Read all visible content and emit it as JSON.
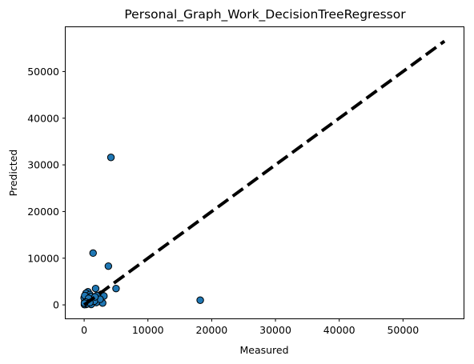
{
  "chart_data": {
    "type": "scatter",
    "title": "Personal_Graph_Work_DecisionTreeRegressor",
    "xlabel": "Measured",
    "ylabel": "Predicted",
    "xlim": [
      -2900,
      59500
    ],
    "ylim": [
      -2900,
      59500
    ],
    "xticks": [
      0,
      10000,
      20000,
      30000,
      40000,
      50000
    ],
    "yticks": [
      0,
      10000,
      20000,
      30000,
      40000,
      50000
    ],
    "xtick_labels": [
      "0",
      "10000",
      "20000",
      "30000",
      "40000",
      "50000"
    ],
    "ytick_labels": [
      "0",
      "10000",
      "20000",
      "30000",
      "40000",
      "50000"
    ],
    "grid": false,
    "reference_line": {
      "style": "dashed",
      "color": "#000000",
      "from": [
        0,
        0
      ],
      "to": [
        56500,
        56500
      ]
    },
    "marker_color": "#1f77b4",
    "marker_edge_color": "#000000",
    "points": [
      {
        "x": 4200,
        "y": 31600
      },
      {
        "x": 1400,
        "y": 11100
      },
      {
        "x": 3800,
        "y": 8300
      },
      {
        "x": 18200,
        "y": 1000
      },
      {
        "x": 5000,
        "y": 3500
      },
      {
        "x": 1800,
        "y": 3500
      },
      {
        "x": 600,
        "y": 2800
      },
      {
        "x": 300,
        "y": 2500
      },
      {
        "x": 900,
        "y": 2200
      },
      {
        "x": 2700,
        "y": 2300
      },
      {
        "x": 3100,
        "y": 1900
      },
      {
        "x": 2200,
        "y": 1500
      },
      {
        "x": 1500,
        "y": 1300
      },
      {
        "x": 1000,
        "y": 1800
      },
      {
        "x": 500,
        "y": 1600
      },
      {
        "x": 200,
        "y": 1200
      },
      {
        "x": 700,
        "y": 900
      },
      {
        "x": 1200,
        "y": 700
      },
      {
        "x": 2900,
        "y": 400
      },
      {
        "x": 1900,
        "y": 500
      },
      {
        "x": 100,
        "y": 800
      },
      {
        "x": 400,
        "y": 400
      },
      {
        "x": 800,
        "y": 300
      },
      {
        "x": 1100,
        "y": 100
      },
      {
        "x": 300,
        "y": 100
      },
      {
        "x": 50,
        "y": 50
      },
      {
        "x": 150,
        "y": 300
      },
      {
        "x": 600,
        "y": 600
      },
      {
        "x": 1300,
        "y": 1000
      },
      {
        "x": 2000,
        "y": 2000
      },
      {
        "x": 2500,
        "y": 1200
      },
      {
        "x": 0,
        "y": 1500
      },
      {
        "x": 100,
        "y": 2000
      },
      {
        "x": 700,
        "y": 1400
      },
      {
        "x": 1600,
        "y": 800
      },
      {
        "x": 250,
        "y": 600
      },
      {
        "x": 450,
        "y": 200
      },
      {
        "x": 900,
        "y": 500
      },
      {
        "x": 50,
        "y": 350
      },
      {
        "x": 1700,
        "y": 1700
      }
    ]
  }
}
